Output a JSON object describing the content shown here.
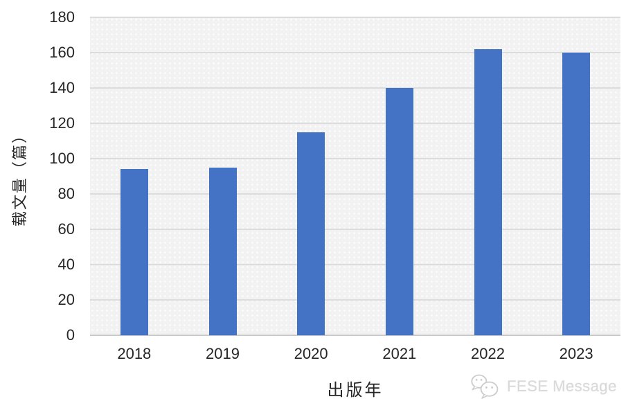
{
  "chart_data": {
    "type": "bar",
    "title": "",
    "categories": [
      "2018",
      "2019",
      "2020",
      "2021",
      "2022",
      "2023"
    ],
    "values": [
      94,
      95,
      115,
      140,
      162,
      160
    ],
    "xlabel": "出版年",
    "ylabel": "载文量（篇）",
    "ylim": [
      0,
      180
    ],
    "ytick_step": 20,
    "grid": true,
    "legend_position": "none",
    "bar_color": "#4472C4",
    "gridline_color": "#DCDCDC",
    "plot_bg_color": "#F2F2F2",
    "axis_text_color": "#262626"
  },
  "watermark": {
    "label": "FESE Message",
    "icon": "wechat-icon",
    "color": "#DADADA"
  }
}
